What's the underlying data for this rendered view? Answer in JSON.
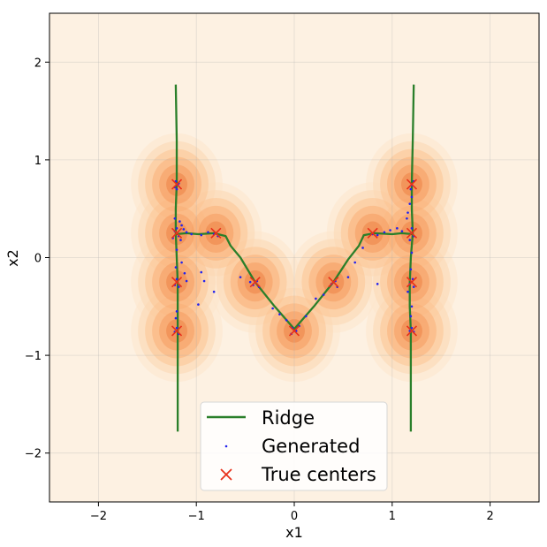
{
  "chart_data": {
    "type": "scatter",
    "xlabel": "x1",
    "ylabel": "x2",
    "xlim": [
      -2.5,
      2.5
    ],
    "ylim": [
      -2.5,
      2.5
    ],
    "xticks": [
      -2,
      -1,
      0,
      1,
      2
    ],
    "yticks": [
      -2,
      -1,
      0,
      1,
      2
    ],
    "xtick_labels": [
      "−2",
      "−1",
      "0",
      "1",
      "2"
    ],
    "ytick_labels": [
      "−2",
      "−1",
      "0",
      "1",
      "2"
    ],
    "grid": true,
    "legend_position": "bottom-center",
    "colors": {
      "ridge": "#2a7f2a",
      "generated": "#2222ee",
      "centers": "#e8301a",
      "density_base": "#fdf1e2",
      "density_peak": "#e8622a"
    },
    "series": [
      {
        "name": "Ridge",
        "kind": "line",
        "segments": [
          [
            [
              -1.21,
              1.77
            ],
            [
              -1.2,
              1.2
            ],
            [
              -1.2,
              0.76
            ],
            [
              -1.21,
              0.5
            ],
            [
              -1.21,
              0.25
            ],
            [
              -1.2,
              0.0
            ],
            [
              -1.19,
              -0.26
            ],
            [
              -1.19,
              -0.5
            ],
            [
              -1.19,
              -0.75
            ],
            [
              -1.19,
              -1.0
            ],
            [
              -1.19,
              -1.78
            ]
          ],
          [
            [
              -1.21,
              0.24
            ],
            [
              -1.1,
              0.25
            ],
            [
              -0.98,
              0.24
            ],
            [
              -0.82,
              0.25
            ],
            [
              -0.7,
              0.22
            ],
            [
              -0.65,
              0.12
            ],
            [
              -0.55,
              0.0
            ],
            [
              -0.4,
              -0.25
            ],
            [
              -0.2,
              -0.5
            ],
            [
              0.0,
              -0.73
            ],
            [
              0.2,
              -0.5
            ],
            [
              0.4,
              -0.25
            ],
            [
              0.55,
              -0.02
            ],
            [
              0.66,
              0.12
            ],
            [
              0.71,
              0.23
            ],
            [
              0.82,
              0.25
            ],
            [
              1.0,
              0.24
            ],
            [
              1.1,
              0.25
            ],
            [
              1.21,
              0.24
            ]
          ],
          [
            [
              1.22,
              1.77
            ],
            [
              1.21,
              1.2
            ],
            [
              1.2,
              0.76
            ],
            [
              1.2,
              0.5
            ],
            [
              1.21,
              0.25
            ],
            [
              1.19,
              0.0
            ],
            [
              1.18,
              -0.26
            ],
            [
              1.18,
              -0.5
            ],
            [
              1.19,
              -0.75
            ],
            [
              1.19,
              -1.0
            ],
            [
              1.19,
              -1.78
            ]
          ]
        ]
      },
      {
        "name": "Generated",
        "kind": "scatter",
        "points": [
          [
            -1.21,
            0.78
          ],
          [
            -1.19,
            0.74
          ],
          [
            -1.22,
            0.72
          ],
          [
            -1.18,
            0.76
          ],
          [
            -1.2,
            0.7
          ],
          [
            -1.22,
            0.4
          ],
          [
            -1.17,
            0.37
          ],
          [
            -1.15,
            0.33
          ],
          [
            -1.2,
            0.3
          ],
          [
            -1.13,
            0.29
          ],
          [
            -1.22,
            0.27
          ],
          [
            -1.18,
            0.22
          ],
          [
            -1.1,
            0.26
          ],
          [
            -1.05,
            0.24
          ],
          [
            -0.95,
            0.23
          ],
          [
            -0.88,
            0.26
          ],
          [
            -0.82,
            0.24
          ],
          [
            -0.78,
            0.22
          ],
          [
            -1.24,
            0.2
          ],
          [
            -1.16,
            0.18
          ],
          [
            -1.2,
            0.08
          ],
          [
            -1.21,
            -0.1
          ],
          [
            -1.15,
            -0.05
          ],
          [
            -1.2,
            -0.22
          ],
          [
            -1.22,
            -0.28
          ],
          [
            -1.18,
            -0.3
          ],
          [
            -1.12,
            -0.16
          ],
          [
            -1.1,
            -0.24
          ],
          [
            -1.2,
            -0.55
          ],
          [
            -1.21,
            -0.62
          ],
          [
            -1.2,
            -0.72
          ],
          [
            -1.22,
            -0.76
          ],
          [
            -1.18,
            -0.78
          ],
          [
            -0.95,
            -0.15
          ],
          [
            -0.92,
            -0.24
          ],
          [
            -0.98,
            -0.48
          ],
          [
            -0.82,
            -0.35
          ],
          [
            -0.55,
            -0.2
          ],
          [
            -0.45,
            -0.25
          ],
          [
            -0.38,
            -0.24
          ],
          [
            -0.36,
            -0.3
          ],
          [
            -0.42,
            -0.28
          ],
          [
            -0.22,
            -0.52
          ],
          [
            -0.15,
            -0.58
          ],
          [
            -0.08,
            -0.64
          ],
          [
            -0.02,
            -0.72
          ],
          [
            0.02,
            -0.75
          ],
          [
            0.05,
            -0.7
          ],
          [
            -0.03,
            -0.78
          ],
          [
            0.12,
            -0.6
          ],
          [
            0.22,
            -0.42
          ],
          [
            0.3,
            -0.38
          ],
          [
            0.38,
            -0.27
          ],
          [
            0.42,
            -0.24
          ],
          [
            0.44,
            -0.3
          ],
          [
            0.55,
            -0.2
          ],
          [
            0.62,
            -0.05
          ],
          [
            0.7,
            0.1
          ],
          [
            0.8,
            0.24
          ],
          [
            0.85,
            0.23
          ],
          [
            0.92,
            0.26
          ],
          [
            0.98,
            0.28
          ],
          [
            1.05,
            0.3
          ],
          [
            1.1,
            0.27
          ],
          [
            0.85,
            -0.27
          ],
          [
            1.15,
            0.4
          ],
          [
            1.18,
            0.55
          ],
          [
            1.2,
            0.62
          ],
          [
            1.16,
            0.46
          ],
          [
            1.2,
            0.74
          ],
          [
            1.22,
            0.78
          ],
          [
            1.19,
            0.7
          ],
          [
            1.2,
            0.3
          ],
          [
            1.22,
            0.22
          ],
          [
            1.18,
            0.18
          ],
          [
            1.2,
            0.05
          ],
          [
            1.19,
            -0.12
          ],
          [
            1.21,
            -0.22
          ],
          [
            1.18,
            -0.27
          ],
          [
            1.22,
            -0.3
          ],
          [
            1.16,
            -0.35
          ],
          [
            1.2,
            -0.5
          ],
          [
            1.19,
            -0.6
          ],
          [
            1.2,
            -0.72
          ],
          [
            1.22,
            -0.76
          ],
          [
            1.18,
            -0.75
          ]
        ]
      },
      {
        "name": "True centers",
        "kind": "marker",
        "points": [
          [
            -1.2,
            0.75
          ],
          [
            -1.2,
            0.25
          ],
          [
            -1.2,
            -0.25
          ],
          [
            -1.2,
            -0.75
          ],
          [
            -0.8,
            0.25
          ],
          [
            -0.4,
            -0.25
          ],
          [
            0.0,
            -0.75
          ],
          [
            0.4,
            -0.25
          ],
          [
            0.8,
            0.25
          ],
          [
            1.2,
            0.75
          ],
          [
            1.2,
            0.25
          ],
          [
            1.2,
            -0.25
          ],
          [
            1.2,
            -0.75
          ]
        ]
      }
    ]
  }
}
